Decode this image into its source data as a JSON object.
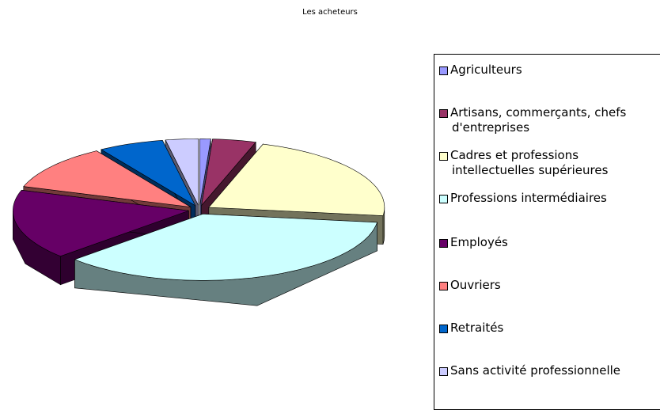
{
  "chart_data": {
    "type": "pie",
    "title": "Les acheteurs",
    "categories": [
      "Agriculteurs",
      "Artisans, commerçants, chefs d'entreprises",
      "Cadres et professions intellectuelles supérieures",
      "Professions intermédiaires",
      "Employés",
      "Ouvriers",
      "Retraités",
      "Sans activité professionnelle"
    ],
    "values": [
      1,
      4,
      22,
      36,
      17,
      11,
      6,
      3
    ],
    "colors": [
      "#9999ff",
      "#993366",
      "#ffffcc",
      "#ccffff",
      "#660066",
      "#ff8080",
      "#0066cc",
      "#ccccff"
    ],
    "legend": "right"
  }
}
